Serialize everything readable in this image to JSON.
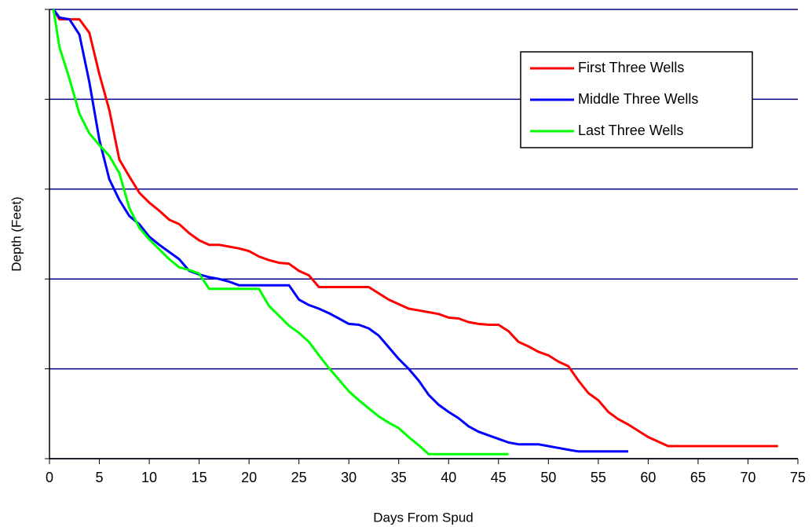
{
  "chart_data": {
    "type": "line",
    "xlabel": "Days From Spud",
    "ylabel": "Depth (Feet)",
    "xlim": [
      0,
      75
    ],
    "xticks": [
      0,
      5,
      10,
      15,
      20,
      25,
      30,
      35,
      40,
      45,
      50,
      55,
      60,
      65,
      70,
      75
    ],
    "ylim": [
      5,
      0
    ],
    "yticks": [
      0,
      1,
      2,
      3,
      4,
      5
    ],
    "grid": true,
    "legend": "upper right",
    "series": [
      {
        "name": "First Three Wells",
        "color": "#ff0000",
        "x": [
          0.4,
          1,
          2,
          3,
          4,
          5,
          6,
          7,
          8,
          9,
          10,
          11,
          12,
          13,
          14,
          15,
          16,
          17,
          18,
          19,
          20,
          21,
          22,
          23,
          24,
          25,
          26,
          27,
          28,
          29,
          30,
          31,
          32,
          33,
          34,
          35,
          36,
          37,
          38,
          39,
          40,
          41,
          42,
          43,
          44,
          45,
          46,
          47,
          48,
          49,
          50,
          51,
          52,
          53,
          54,
          55,
          56,
          57,
          58,
          59,
          60,
          61,
          62,
          63,
          64,
          65,
          66,
          67,
          68,
          69,
          70,
          71,
          72,
          73
        ],
        "values": [
          0,
          0.11,
          0.11,
          0.11,
          0.26,
          0.72,
          1.12,
          1.67,
          1.86,
          2.04,
          2.15,
          2.24,
          2.34,
          2.39,
          2.49,
          2.57,
          2.62,
          2.62,
          2.64,
          2.66,
          2.69,
          2.75,
          2.79,
          2.82,
          2.83,
          2.91,
          2.96,
          3.09,
          3.09,
          3.09,
          3.09,
          3.09,
          3.09,
          3.16,
          3.23,
          3.28,
          3.33,
          3.35,
          3.37,
          3.39,
          3.43,
          3.44,
          3.48,
          3.5,
          3.51,
          3.51,
          3.58,
          3.7,
          3.75,
          3.81,
          3.85,
          3.92,
          3.97,
          4.13,
          4.27,
          4.35,
          4.48,
          4.56,
          4.62,
          4.69,
          4.76,
          4.81,
          4.86,
          4.86,
          4.86,
          4.86,
          4.86,
          4.86,
          4.86,
          4.86,
          4.86,
          4.86,
          4.86,
          4.86
        ]
      },
      {
        "name": "Middle Three Wells",
        "color": "#0000ff",
        "x": [
          0.4,
          1,
          2,
          3,
          4,
          5,
          6,
          7,
          8,
          9,
          10,
          11,
          12,
          13,
          14,
          15,
          16,
          17,
          18,
          19,
          20,
          21,
          22,
          23,
          24,
          25,
          26,
          27,
          28,
          29,
          30,
          31,
          32,
          33,
          34,
          35,
          36,
          37,
          38,
          39,
          40,
          41,
          42,
          43,
          44,
          45,
          46,
          47,
          48,
          49,
          50,
          51,
          52,
          53,
          54,
          55,
          56,
          57,
          58
        ],
        "values": [
          0,
          0.09,
          0.11,
          0.28,
          0.81,
          1.45,
          1.89,
          2.12,
          2.3,
          2.39,
          2.53,
          2.62,
          2.7,
          2.78,
          2.91,
          2.95,
          2.98,
          3.0,
          3.03,
          3.07,
          3.07,
          3.07,
          3.07,
          3.07,
          3.07,
          3.23,
          3.29,
          3.33,
          3.38,
          3.44,
          3.5,
          3.51,
          3.55,
          3.63,
          3.76,
          3.89,
          4.0,
          4.13,
          4.29,
          4.4,
          4.48,
          4.55,
          4.64,
          4.7,
          4.74,
          4.78,
          4.82,
          4.84,
          4.84,
          4.84,
          4.86,
          4.88,
          4.9,
          4.92,
          4.92,
          4.92,
          4.92,
          4.92,
          4.92
        ]
      },
      {
        "name": "Last Three Wells",
        "color": "#00ff00",
        "x": [
          0.4,
          1,
          2,
          3,
          4,
          5,
          6,
          7,
          8,
          9,
          10,
          11,
          12,
          13,
          14,
          15,
          16,
          17,
          18,
          19,
          20,
          21,
          22,
          23,
          24,
          25,
          26,
          27,
          28,
          29,
          30,
          31,
          32,
          33,
          34,
          35,
          36,
          37,
          38,
          39,
          40,
          41,
          42,
          43,
          44,
          45,
          46
        ],
        "values": [
          0,
          0.42,
          0.77,
          1.16,
          1.38,
          1.51,
          1.63,
          1.82,
          2.21,
          2.43,
          2.56,
          2.67,
          2.78,
          2.87,
          2.9,
          2.94,
          3.11,
          3.11,
          3.11,
          3.11,
          3.11,
          3.11,
          3.3,
          3.41,
          3.52,
          3.6,
          3.7,
          3.85,
          3.99,
          4.12,
          4.25,
          4.35,
          4.44,
          4.53,
          4.6,
          4.66,
          4.76,
          4.85,
          4.95,
          4.95,
          4.95,
          4.95,
          4.95,
          4.95,
          4.95,
          4.95,
          4.95
        ]
      }
    ]
  }
}
